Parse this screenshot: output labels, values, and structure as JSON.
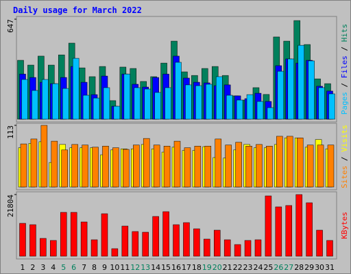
{
  "chart_data": {
    "type": "bar",
    "title": "Daily usage for March 2022",
    "categories": [
      "1",
      "2",
      "3",
      "4",
      "5",
      "6",
      "7",
      "8",
      "9",
      "10",
      "11",
      "12",
      "13",
      "14",
      "15",
      "16",
      "17",
      "18",
      "19",
      "20",
      "21",
      "22",
      "23",
      "24",
      "25",
      "26",
      "27",
      "28",
      "29",
      "30",
      "31"
    ],
    "category_colors": [
      "#000000",
      "#000000",
      "#000000",
      "#000000",
      "#00805c",
      "#00805c",
      "#000000",
      "#000000",
      "#000000",
      "#000000",
      "#000000",
      "#00805c",
      "#00805c",
      "#000000",
      "#000000",
      "#000000",
      "#000000",
      "#000000",
      "#00805c",
      "#00805c",
      "#000000",
      "#000000",
      "#000000",
      "#000000",
      "#000000",
      "#00805c",
      "#00805c",
      "#000000",
      "#000000",
      "#000000",
      "#000000"
    ],
    "legend_separator": " / ",
    "panels": [
      {
        "ylim": [
          0,
          647
        ],
        "yticks": [
          647
        ],
        "series": [
          {
            "name": "Hits",
            "color": "#00805c",
            "values": [
              381,
              350,
              408,
              350,
              416,
              492,
              332,
              275,
              341,
              120,
              337,
              328,
              244,
              275,
              363,
              505,
              306,
              283,
              328,
              341,
              283,
              151,
              124,
              204,
              160,
              532,
              505,
              638,
              483,
              261,
              230
            ]
          },
          {
            "name": "Files",
            "color": "#0000ff",
            "values": [
              292,
              270,
              239,
              230,
              270,
              341,
              239,
              159,
              279,
              84,
              292,
              226,
              208,
              270,
              292,
              408,
              266,
              239,
              235,
              217,
              222,
              151,
              133,
              168,
              115,
              346,
              390,
              363,
              381,
              213,
              182
            ]
          },
          {
            "name": "Pages",
            "color": "#00c0ff",
            "values": [
              257,
              186,
              257,
              230,
              199,
              394,
              155,
              137,
              204,
              84,
              292,
              204,
              195,
              173,
              204,
              368,
              222,
              217,
              226,
              275,
              155,
              124,
              159,
              115,
              75,
              310,
              390,
              478,
              377,
              204,
              164
            ]
          }
        ]
      },
      {
        "ylim": [
          0,
          113
        ],
        "yticks": [
          113
        ],
        "series": [
          {
            "name": "Visits",
            "color": "#ffff00",
            "values": [
              72,
              80,
              83,
              45,
              78,
              72,
              72,
              72,
              59,
              68,
              70,
              70,
              78,
              70,
              64,
              73,
              67,
              67,
              74,
              54,
              53,
              68,
              78,
              72,
              72,
              78,
              90,
              90,
              73,
              87,
              70
            ]
          },
          {
            "name": "Sites",
            "color": "#ff8000",
            "values": [
              79,
              88,
              113,
              84,
              68,
              78,
              77,
              73,
              75,
              72,
              69,
              77,
              89,
              77,
              75,
              84,
              72,
              75,
              75,
              88,
              77,
              82,
              75,
              78,
              75,
              93,
              93,
              90,
              77,
              77,
              77
            ]
          }
        ]
      },
      {
        "ylim": [
          0,
          21804
        ],
        "yticks": [
          21804
        ],
        "series": [
          {
            "name": "KBytes",
            "color": "#ff0000",
            "values": [
              11630,
              11146,
              6300,
              5573,
              15507,
              15507,
              12114,
              5815,
              15023,
              2665,
              10661,
              8723,
              8481,
              14053,
              15750,
              11146,
              11873,
              9692,
              6058,
              9207,
              5815,
              4119,
              5573,
              5815,
              21322,
              17446,
              17931,
              21804,
              18900,
              9207,
              5573
            ]
          }
        ]
      }
    ]
  }
}
